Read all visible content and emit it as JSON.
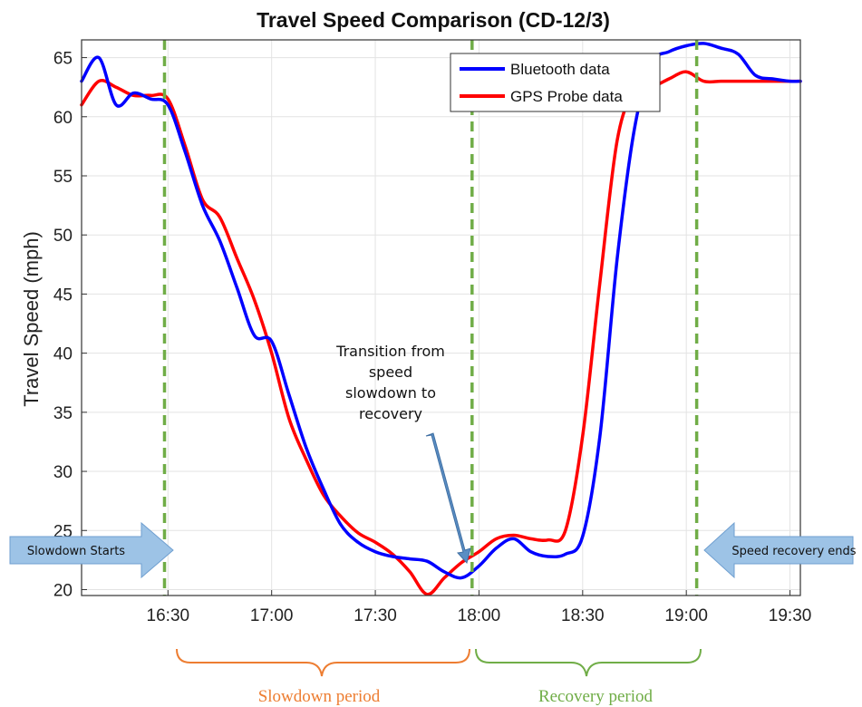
{
  "chart_data": {
    "type": "line",
    "title": "Travel Speed Comparison (CD-12/3)",
    "ylabel": "Travel Speed (mph)",
    "xlabel": "",
    "xlim": [
      "16:05",
      "19:33"
    ],
    "ylim": [
      19.5,
      66.5
    ],
    "xticks": [
      "16:30",
      "17:00",
      "17:30",
      "18:00",
      "18:30",
      "19:00",
      "19:30"
    ],
    "yticks": [
      20,
      25,
      30,
      35,
      40,
      45,
      50,
      55,
      60,
      65
    ],
    "grid": true,
    "legend": "top-right",
    "series": [
      {
        "name": "Bluetooth data",
        "color": "#0000ff",
        "x": [
          "16:05",
          "16:10",
          "16:15",
          "16:20",
          "16:25",
          "16:30",
          "16:35",
          "16:40",
          "16:45",
          "16:50",
          "16:55",
          "17:00",
          "17:05",
          "17:10",
          "17:15",
          "17:20",
          "17:25",
          "17:30",
          "17:35",
          "17:40",
          "17:45",
          "17:50",
          "17:55",
          "18:00",
          "18:05",
          "18:10",
          "18:15",
          "18:20",
          "18:25",
          "18:30",
          "18:35",
          "18:40",
          "18:45",
          "18:50",
          "18:55",
          "19:00",
          "19:05",
          "19:10",
          "19:15",
          "19:20",
          "19:25",
          "19:30",
          "19:33"
        ],
        "values": [
          63.0,
          65.0,
          61.0,
          62.0,
          61.5,
          61.0,
          57.0,
          52.5,
          49.5,
          45.5,
          41.5,
          41.0,
          36.5,
          32.0,
          28.5,
          25.5,
          24.0,
          23.2,
          22.8,
          22.6,
          22.4,
          21.5,
          21.0,
          22.0,
          23.5,
          24.3,
          23.2,
          22.8,
          23.0,
          24.5,
          33.0,
          48.0,
          59.0,
          64.5,
          65.5,
          66.0,
          66.2,
          65.8,
          65.3,
          63.5,
          63.2,
          63.0,
          63.0
        ]
      },
      {
        "name": "GPS Probe data",
        "color": "#ff0000",
        "x": [
          "16:05",
          "16:10",
          "16:15",
          "16:20",
          "16:25",
          "16:30",
          "16:35",
          "16:40",
          "16:45",
          "16:50",
          "16:55",
          "17:00",
          "17:05",
          "17:10",
          "17:15",
          "17:20",
          "17:25",
          "17:30",
          "17:35",
          "17:40",
          "17:45",
          "17:50",
          "17:55",
          "18:00",
          "18:05",
          "18:10",
          "18:15",
          "18:20",
          "18:25",
          "18:30",
          "18:35",
          "18:40",
          "18:45",
          "18:50",
          "18:55",
          "19:00",
          "19:05",
          "19:10",
          "19:15",
          "19:20",
          "19:25",
          "19:30",
          "19:33"
        ],
        "values": [
          61.0,
          63.0,
          62.5,
          61.8,
          61.8,
          61.5,
          57.5,
          53.0,
          51.5,
          48.0,
          44.5,
          40.0,
          34.5,
          31.0,
          28.0,
          26.2,
          24.8,
          24.0,
          23.0,
          21.5,
          19.6,
          21.0,
          22.3,
          23.2,
          24.3,
          24.6,
          24.3,
          24.2,
          25.0,
          33.0,
          46.0,
          58.0,
          62.2,
          62.5,
          63.2,
          63.8,
          63.0,
          63.0,
          63.0,
          63.0,
          63.0,
          63.0,
          63.0
        ]
      }
    ],
    "vlines": [
      {
        "x": "16:29",
        "color": "#70ad47"
      },
      {
        "x": "17:58",
        "color": "#70ad47"
      },
      {
        "x": "19:03",
        "color": "#70ad47"
      }
    ],
    "annotations": {
      "transition": [
        "Transition from",
        "speed",
        "slowdown to",
        "recovery"
      ],
      "start_arrow": "Slowdown Starts",
      "end_arrow": "Speed recovery ends",
      "slowdown_period": "Slowdown period",
      "recovery_period": "Recovery period"
    },
    "annotation_colors": {
      "arrow_fill": "#9dc3e6",
      "arrow_stroke": "#6f9fd0",
      "pointer_arrow": "#5b8ec4",
      "slowdown_brace": "#ed7d31",
      "recovery_brace": "#70ad47"
    }
  }
}
